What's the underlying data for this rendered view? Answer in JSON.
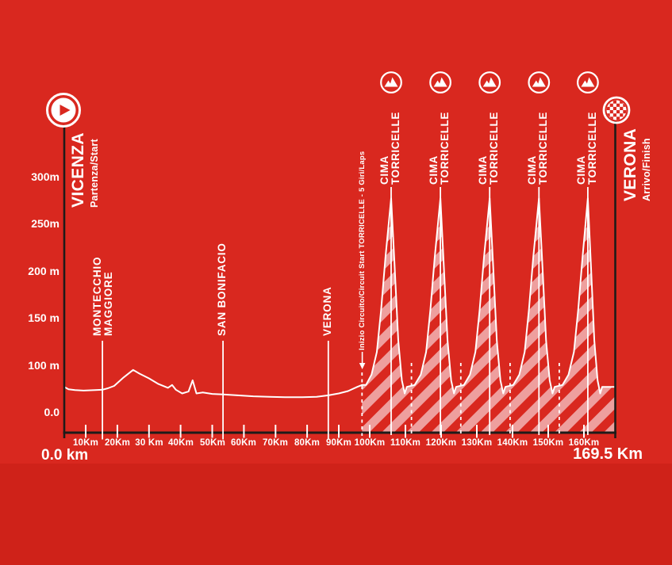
{
  "colors": {
    "background": "#d9281f",
    "footer_band": "#cf2219",
    "stripe": "#ee9f9e",
    "line": "#ffffff",
    "axis": "#1e1b19"
  },
  "start": {
    "city": "VICENZA",
    "role": "Partenza/Start"
  },
  "finish": {
    "city": "VERONA",
    "role": "Arrivo/Finish"
  },
  "footer": {
    "left": "0.0 km",
    "right": "169.5 Km"
  },
  "circuit_note": "Inizio Circuito/Circuit Start TORRICELLE - 5 Giri/Laps",
  "chart_data": {
    "type": "area",
    "x_unit": "Km",
    "y_unit": "m",
    "x_range_km": [
      0,
      169.5
    ],
    "y_axis_labels": [
      "300m",
      "250m",
      "200 m",
      "150 m",
      "100 m",
      "0.0"
    ],
    "x_ticks": [
      {
        "km": 10,
        "label": "10Km"
      },
      {
        "km": 20,
        "label": "20Km"
      },
      {
        "km": 30,
        "label": "30 Km"
      },
      {
        "km": 40,
        "label": "40Km"
      },
      {
        "km": 50,
        "label": "50Km"
      },
      {
        "km": 60,
        "label": "60Km"
      },
      {
        "km": 70,
        "label": "70Km"
      },
      {
        "km": 80,
        "label": "80Km"
      },
      {
        "km": 90,
        "label": "90Km"
      },
      {
        "km": 100,
        "label": "100Km"
      },
      {
        "km": 110,
        "label": "110Km"
      },
      {
        "km": 120,
        "label": "120Km"
      },
      {
        "km": 130,
        "label": "130Km"
      },
      {
        "km": 140,
        "label": "140Km"
      },
      {
        "km": 150,
        "label": "150Km"
      },
      {
        "km": 160,
        "label": "160Km"
      }
    ],
    "markers": [
      {
        "lines": [
          "MONTECCHIO",
          "MAGGIORE"
        ],
        "km": 15.3
      },
      {
        "lines": [
          "SAN BONIFACIO"
        ],
        "km": 53.4
      },
      {
        "lines": [
          "VERONA"
        ],
        "km": 86.7
      }
    ],
    "climbs": [
      {
        "lines": [
          "CIMA",
          "TORRICELLE"
        ],
        "km": 106
      },
      {
        "lines": [
          "CIMA",
          "TORRICELLE"
        ],
        "km": 119.8
      },
      {
        "lines": [
          "CIMA",
          "TORRICELLE"
        ],
        "km": 133.6
      },
      {
        "lines": [
          "CIMA",
          "TORRICELLE"
        ],
        "km": 147.4
      },
      {
        "lines": [
          "CIMA",
          "TORRICELLE"
        ],
        "km": 161.2
      }
    ],
    "circuit": {
      "start_km": 97.5,
      "laps": 5,
      "lap_dash_kms": [
        97.5,
        111.7,
        125.5,
        139.3,
        153.1
      ]
    },
    "profile_km_m": [
      [
        0,
        78
      ],
      [
        2,
        75.5
      ],
      [
        5,
        74.5
      ],
      [
        9,
        74
      ],
      [
        13,
        74.5
      ],
      [
        15.3,
        75
      ],
      [
        17,
        76.5
      ],
      [
        19,
        79
      ],
      [
        22,
        88
      ],
      [
        25,
        96
      ],
      [
        27,
        92
      ],
      [
        30,
        87
      ],
      [
        33,
        81
      ],
      [
        36,
        77
      ],
      [
        37.3,
        80
      ],
      [
        38.5,
        75
      ],
      [
        40.5,
        71
      ],
      [
        42.5,
        73
      ],
      [
        43.8,
        85
      ],
      [
        45,
        71
      ],
      [
        47,
        72
      ],
      [
        50,
        70.5
      ],
      [
        53.4,
        70
      ],
      [
        58,
        69
      ],
      [
        63,
        68
      ],
      [
        68,
        67.5
      ],
      [
        73,
        67
      ],
      [
        78,
        67
      ],
      [
        83,
        67.5
      ],
      [
        86.7,
        69
      ],
      [
        90,
        71
      ],
      [
        93,
        73.5
      ],
      [
        96,
        78
      ],
      [
        97.5,
        80
      ],
      [
        98.8,
        80
      ],
      [
        100.5,
        91
      ],
      [
        102,
        115
      ],
      [
        103.2,
        160
      ],
      [
        104.4,
        215
      ],
      [
        106,
        278
      ],
      [
        106.9,
        211
      ],
      [
        108,
        127
      ],
      [
        109,
        85
      ],
      [
        109.8,
        71
      ],
      [
        110.4,
        78
      ],
      [
        112.6,
        80
      ],
      [
        114.3,
        91
      ],
      [
        115.8,
        115
      ],
      [
        117,
        160
      ],
      [
        118.2,
        215
      ],
      [
        119.8,
        278
      ],
      [
        120.7,
        211
      ],
      [
        121.8,
        127
      ],
      [
        122.8,
        85
      ],
      [
        123.6,
        71
      ],
      [
        124.2,
        78
      ],
      [
        126.4,
        80
      ],
      [
        128.1,
        91
      ],
      [
        129.6,
        115
      ],
      [
        130.8,
        160
      ],
      [
        132,
        215
      ],
      [
        133.6,
        278
      ],
      [
        134.5,
        211
      ],
      [
        135.6,
        127
      ],
      [
        136.6,
        85
      ],
      [
        137.4,
        71
      ],
      [
        138,
        78
      ],
      [
        140.2,
        80
      ],
      [
        141.9,
        91
      ],
      [
        143.4,
        115
      ],
      [
        144.6,
        160
      ],
      [
        145.8,
        215
      ],
      [
        147.4,
        278
      ],
      [
        148.3,
        211
      ],
      [
        149.4,
        127
      ],
      [
        150.4,
        85
      ],
      [
        151.2,
        71
      ],
      [
        151.8,
        78
      ],
      [
        154,
        80
      ],
      [
        155.7,
        91
      ],
      [
        157.2,
        115
      ],
      [
        158.4,
        160
      ],
      [
        159.6,
        215
      ],
      [
        161.2,
        278
      ],
      [
        162.1,
        211
      ],
      [
        163.2,
        127
      ],
      [
        164.2,
        85
      ],
      [
        165,
        71
      ],
      [
        165.6,
        78
      ],
      [
        167.5,
        78
      ],
      [
        169.5,
        78
      ]
    ]
  }
}
